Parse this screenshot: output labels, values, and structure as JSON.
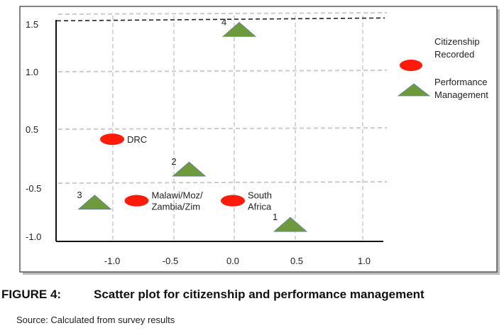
{
  "chart_data": {
    "type": "scatter",
    "x_ticks": [
      "-1.0",
      "-0.5",
      "0.0",
      "0.5",
      "1.0"
    ],
    "y_ticks": [
      "1.5",
      "1.0",
      "0.5",
      "-0.5",
      "-1.0"
    ],
    "grid": true,
    "legend_placement": "right",
    "series": [
      {
        "name": "Citizenship Recorded",
        "marker": "ellipse",
        "color": "#ff1a0a",
        "points": [
          {
            "label": "DRC",
            "x": -1.0,
            "y": 0.33
          },
          {
            "label": "Malawi/Moz/ Zambia/Zim",
            "x": -0.79,
            "y": -0.63
          },
          {
            "label": "South Africa",
            "x": 0.0,
            "y": -0.63
          }
        ]
      },
      {
        "name": "Performance Management",
        "marker": "triangle",
        "color": "#6f9a3c",
        "points": [
          {
            "label": "1",
            "x": 0.45,
            "y": -0.89
          },
          {
            "label": "2",
            "x": -0.35,
            "y": -0.2
          },
          {
            "label": "3",
            "x": -1.15,
            "y": -0.66
          },
          {
            "label": "4",
            "x": 0.05,
            "y": 1.43
          }
        ]
      }
    ],
    "legend": [
      {
        "line1": "Citizenship",
        "line2": "Recorded"
      },
      {
        "line1": "Performance",
        "line2": "Management"
      }
    ],
    "reference_line_y": 1.55
  },
  "caption": {
    "number": "FIGURE 4:",
    "title": "Scatter plot for citizenship and performance management"
  },
  "source": "Source: Calculated from survey results"
}
